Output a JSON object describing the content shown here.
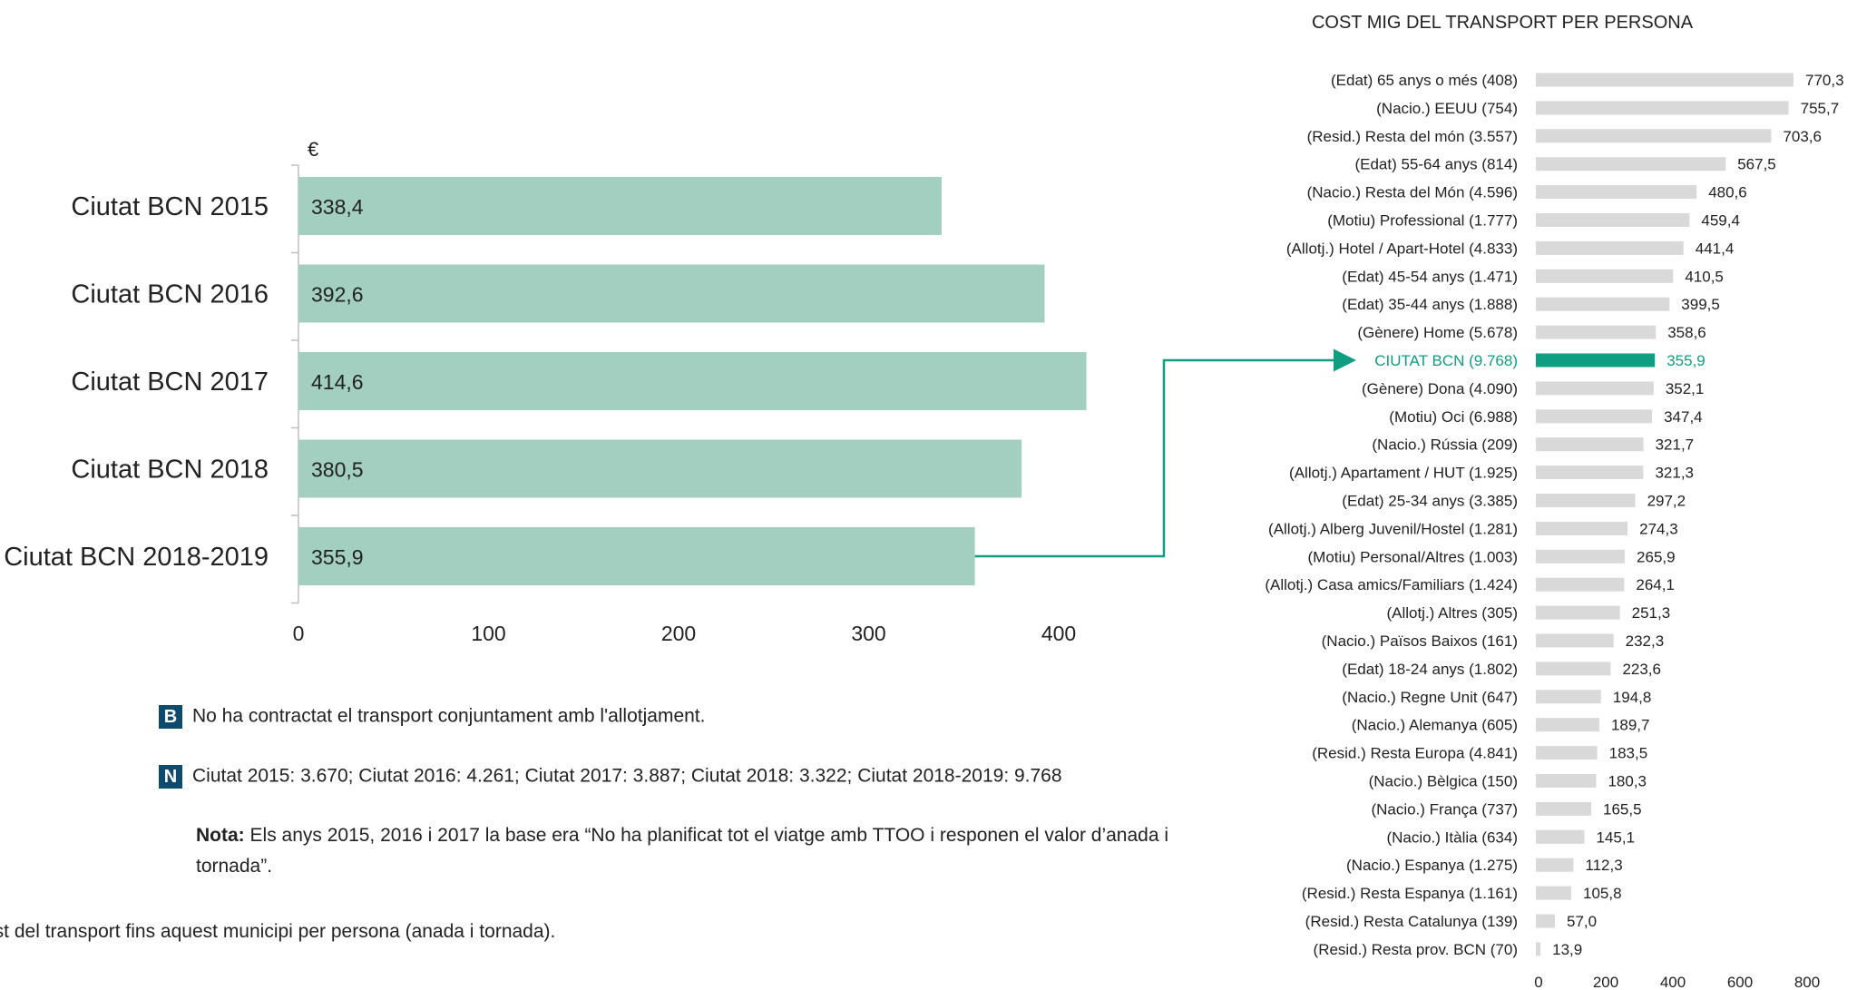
{
  "chart_data": [
    {
      "type": "bar",
      "orientation": "horizontal",
      "unit_label": "€",
      "categories": [
        "Ciutat BCN 2015",
        "Ciutat BCN 2016",
        "Ciutat BCN 2017",
        "Ciutat BCN 2018",
        "Ciutat BCN 2018-2019"
      ],
      "values": [
        338.4,
        392.6,
        414.6,
        380.5,
        355.9
      ],
      "value_labels": [
        "338,4",
        "392,6",
        "414,6",
        "380,5",
        "355,9"
      ],
      "xlim": [
        0,
        450
      ],
      "xticks": [
        0,
        100,
        200,
        300,
        400
      ],
      "bar_color": "#a3cfc0",
      "grid": false
    },
    {
      "type": "bar",
      "orientation": "horizontal",
      "title": "COST MIG DEL TRANSPORT PER PERSONA",
      "categories": [
        "(Edat) 65 anys o més (408)",
        "(Nacio.) EEUU (754)",
        "(Resid.) Resta del món (3.557)",
        "(Edat) 55-64 anys (814)",
        "(Nacio.) Resta del Món (4.596)",
        "(Motiu) Professional (1.777)",
        "(Allotj.) Hotel / Apart-Hotel (4.833)",
        "(Edat) 45-54 anys (1.471)",
        "(Edat) 35-44 anys (1.888)",
        "(Gènere) Home (5.678)",
        "CIUTAT BCN (9.768)",
        "(Gènere) Dona (4.090)",
        "(Motiu) Oci (6.988)",
        "(Nacio.) Rússia (209)",
        "(Allotj.) Apartament / HUT (1.925)",
        "(Edat) 25-34 anys (3.385)",
        "(Allotj.) Alberg Juvenil/Hostel (1.281)",
        "(Motiu) Personal/Altres (1.003)",
        "(Allotj.) Casa amics/Familiars (1.424)",
        "(Allotj.) Altres (305)",
        "(Nacio.) Països Baixos (161)",
        "(Edat) 18-24 anys (1.802)",
        "(Nacio.) Regne Unit (647)",
        "(Nacio.) Alemanya (605)",
        "(Resid.) Resta Europa (4.841)",
        "(Nacio.) Bèlgica (150)",
        "(Nacio.) França (737)",
        "(Nacio.) Itàlia (634)",
        "(Nacio.) Espanya (1.275)",
        "(Resid.) Resta Espanya (1.161)",
        "(Resid.) Resta Catalunya (139)",
        "(Resid.) Resta prov. BCN (70)"
      ],
      "values": [
        770.3,
        755.7,
        703.6,
        567.5,
        480.6,
        459.4,
        441.4,
        410.5,
        399.5,
        358.6,
        355.9,
        352.1,
        347.4,
        321.7,
        321.3,
        297.2,
        274.3,
        265.9,
        264.1,
        251.3,
        232.3,
        223.6,
        194.8,
        189.7,
        183.5,
        180.3,
        165.5,
        145.1,
        112.3,
        105.8,
        57.0,
        13.9
      ],
      "value_labels": [
        "770,3",
        "755,7",
        "703,6",
        "567,5",
        "480,6",
        "459,4",
        "441,4",
        "410,5",
        "399,5",
        "358,6",
        "355,9",
        "352,1",
        "347,4",
        "321,7",
        "321,3",
        "297,2",
        "274,3",
        "265,9",
        "264,1",
        "251,3",
        "232,3",
        "223,6",
        "194,8",
        "189,7",
        "183,5",
        "180,3",
        "165,5",
        "145,1",
        "112,3",
        "105,8",
        "57,0",
        "13,9"
      ],
      "highlight_index": 10,
      "xlim": [
        0,
        800
      ],
      "xticks": [
        0,
        200,
        400,
        600,
        800
      ],
      "bar_color": "#d9d9d9",
      "highlight_color": "#0f9e82",
      "grid": false
    }
  ],
  "notes": {
    "b_badge": "B",
    "b_text": "No ha contractat el transport conjuntament amb l'allotjament.",
    "n_badge": "N",
    "n_text": "Ciutat 2015: 3.670; Ciutat 2016: 4.261; Ciutat 2017: 3.887; Ciutat 2018: 3.322; Ciutat 2018-2019: 9.768",
    "nota_label": "Nota:",
    "nota_text": "Els anys 2015, 2016 i 2017 la base era “No ha planificat tot el viatge amb TTOO i responen el valor d’anada i tornada”."
  },
  "footer": "ost del transport fins aquest municipi per persona (anada i tornada)."
}
